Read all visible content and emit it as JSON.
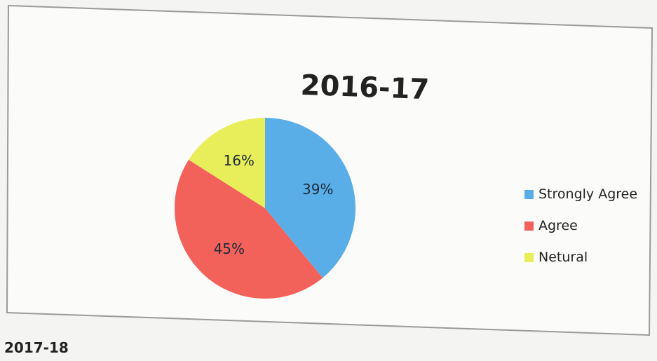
{
  "chart_data": {
    "type": "pie",
    "title": "2016-17",
    "categories": [
      "Strongly Agree",
      "Agree",
      "Netural"
    ],
    "values": [
      39,
      45,
      16
    ],
    "labels": [
      "39%",
      "45%",
      "16%"
    ],
    "colors": [
      "#5aaee8",
      "#f2625a",
      "#e8ee5a"
    ],
    "legend_placement": "right"
  },
  "next_section": {
    "heading": "2017-18"
  }
}
